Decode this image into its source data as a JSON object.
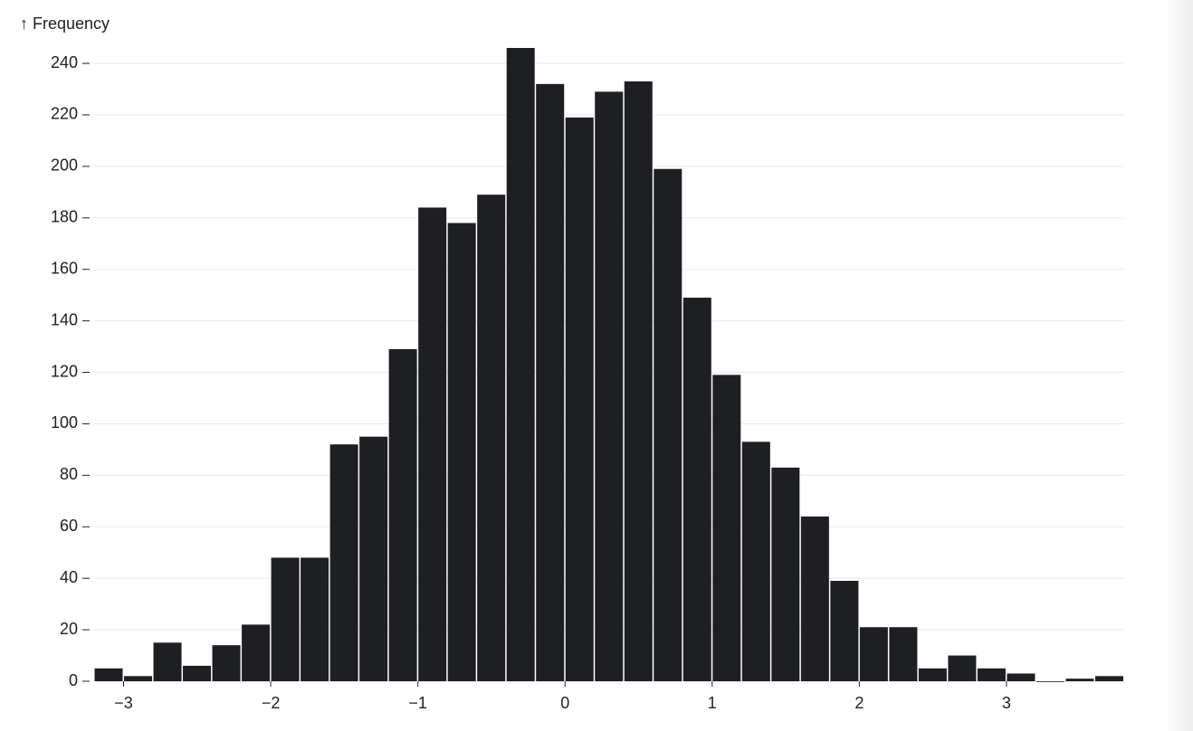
{
  "chart_data": {
    "type": "histogram",
    "y_label": "↑ Frequency",
    "color": "#1e1f23",
    "bins": [
      -3.2,
      -3.0,
      -2.8,
      -2.6,
      -2.4,
      -2.2,
      -2.0,
      -1.8,
      -1.6,
      -1.4,
      -1.2,
      -1.0,
      -0.8,
      -0.6,
      -0.4,
      -0.2,
      0,
      0.2,
      0.4,
      0.6,
      0.8,
      1.0,
      1.2,
      1.4,
      1.6,
      1.8,
      2.0,
      2.2,
      2.4,
      2.6,
      2.8,
      3.0,
      3.2,
      3.4,
      3.6,
      3.8
    ],
    "values": [
      5,
      2,
      15,
      6,
      14,
      22,
      48,
      48,
      92,
      95,
      129,
      184,
      178,
      189,
      246,
      232,
      219,
      229,
      233,
      199,
      149,
      119,
      93,
      83,
      64,
      39,
      21,
      21,
      5,
      10,
      5,
      3,
      0,
      1,
      2
    ],
    "xlim": [
      -3.2,
      3.8
    ],
    "xticks": [
      {
        "value": -3,
        "label": "−3"
      },
      {
        "value": -2,
        "label": "−2"
      },
      {
        "value": -1,
        "label": "−1"
      },
      0,
      1,
      2,
      3
    ],
    "ylim": [
      0,
      246
    ],
    "yticks": [
      0,
      20,
      40,
      60,
      80,
      100,
      120,
      140,
      160,
      180,
      200,
      220,
      240
    ],
    "grid": true
  }
}
